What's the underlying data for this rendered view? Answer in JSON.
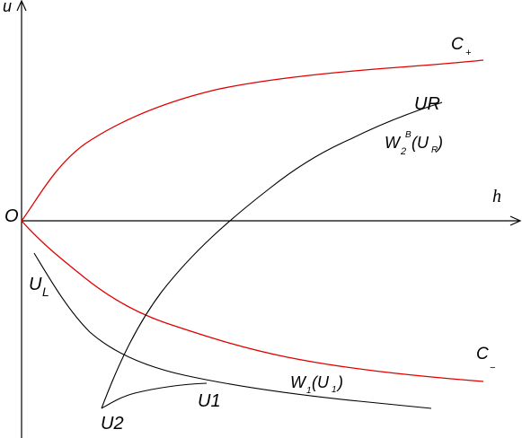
{
  "axes": {
    "vertical_label": "u",
    "horizontal_label": "h",
    "origin_label": "O"
  },
  "curves": {
    "c_plus": {
      "label": "C",
      "sub": "+",
      "color": "#e00000"
    },
    "c_minus": {
      "label": "C",
      "sub": "−",
      "color": "#e00000"
    },
    "w2b": {
      "label": "W",
      "sub": "2",
      "sup": "B",
      "arg": "(U",
      "arg_sub": "R",
      "close": ")"
    },
    "w1": {
      "label": "W",
      "sub": "1",
      "arg": "(U",
      "arg_sub": "1",
      "close": ")"
    }
  },
  "points": {
    "u_r": "UR",
    "u_l": "U",
    "u_l_sub": "L",
    "u_1": "U1",
    "u_2": "U2"
  }
}
